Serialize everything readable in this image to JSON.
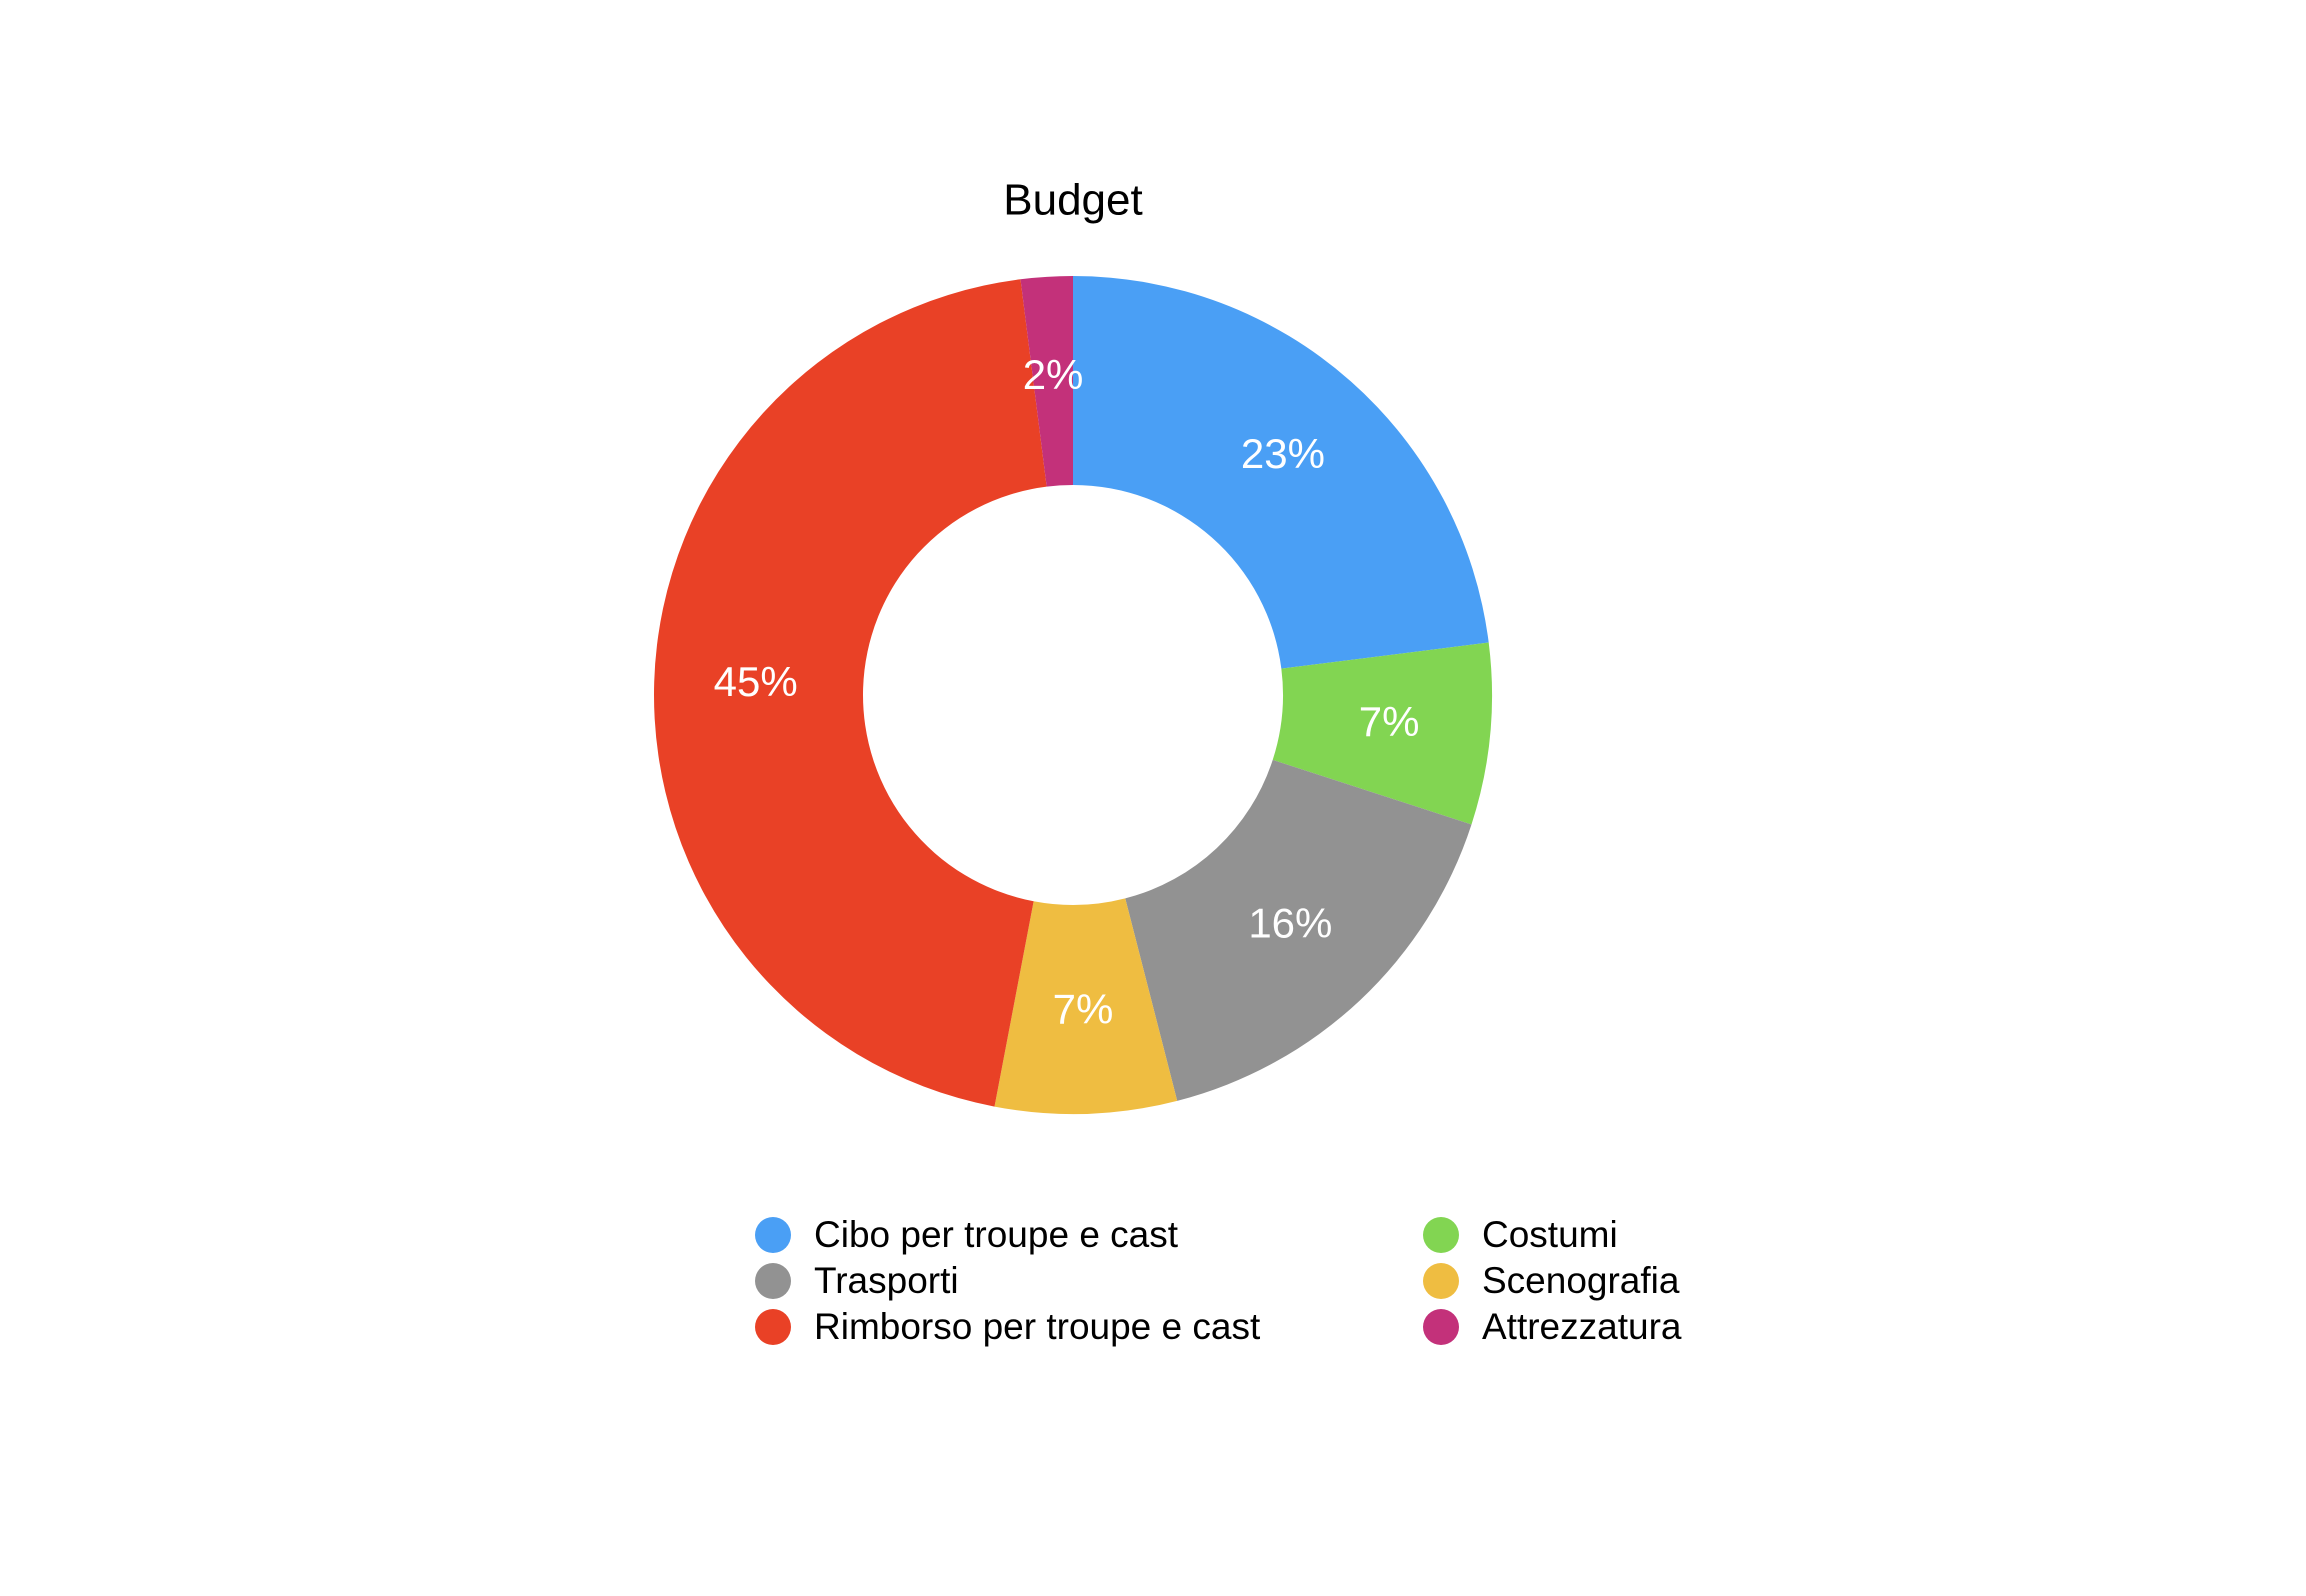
{
  "chart_data": {
    "type": "pie",
    "title": "Budget",
    "donut": true,
    "categories": [
      "Cibo per troupe e cast",
      "Costumi",
      "Trasporti",
      "Scenografia",
      "Rimborso per troupe e cast",
      "Attrezzatura"
    ],
    "values": [
      23,
      7,
      16,
      7,
      45,
      2
    ],
    "value_labels": [
      "23%",
      "7%",
      "16%",
      "7%",
      "45%",
      "2%"
    ],
    "colors": [
      "#4a9ff5",
      "#82d552",
      "#929292",
      "#efbd41",
      "#e94126",
      "#c3317a"
    ]
  }
}
